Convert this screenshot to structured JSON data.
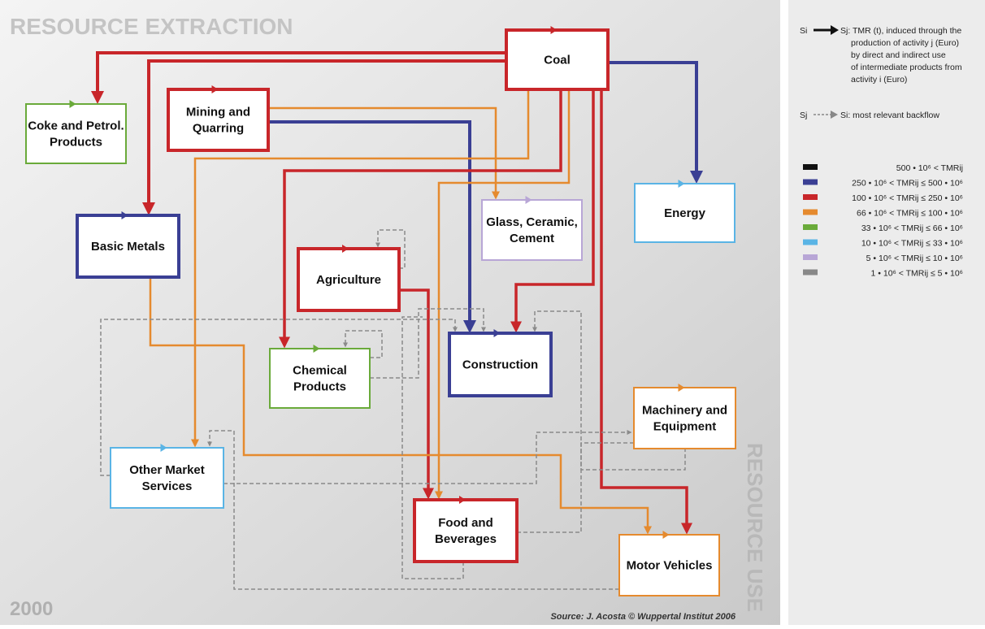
{
  "header": {
    "title": "RESOURCE EXTRACTION",
    "year": "2000",
    "side_label": "RESOURCE USE",
    "source": "Source: J. Acosta © Wuppertal Institut 2006"
  },
  "nodes": [
    {
      "lines": [
        "Coal"
      ],
      "color": "#c8262a"
    },
    {
      "lines": [
        "Coke and Petrol.",
        "Products"
      ],
      "color": "#6aaa3a"
    },
    {
      "lines": [
        "Mining and",
        "Quarring"
      ],
      "color": "#c8262a"
    },
    {
      "lines": [
        "Basic Metals"
      ],
      "color": "#3a3f94"
    },
    {
      "lines": [
        "Glass, Ceramic,",
        "Cement"
      ],
      "color": "#b8a6d6"
    },
    {
      "lines": [
        "Energy"
      ],
      "color": "#5ab4e5"
    },
    {
      "lines": [
        "Agriculture"
      ],
      "color": "#c8262a"
    },
    {
      "lines": [
        "Chemical",
        "Products"
      ],
      "color": "#6aaa3a"
    },
    {
      "lines": [
        "Construction"
      ],
      "color": "#3a3f94"
    },
    {
      "lines": [
        "Machinery and",
        "Equipment"
      ],
      "color": "#e58a2e"
    },
    {
      "lines": [
        "Other Market",
        "Services"
      ],
      "color": "#5ab4e5"
    },
    {
      "lines": [
        "Food and",
        "Beverages"
      ],
      "color": "#c8262a"
    },
    {
      "lines": [
        "Motor Vehicles"
      ],
      "color": "#e58a2e"
    }
  ],
  "legend": {
    "flow_from": "Si",
    "flow_text": [
      "Sj: TMR (t), induced through the",
      "production of activity j (Euro)",
      "by direct and indirect use",
      "of intermediate products from",
      "activity i (Euro)"
    ],
    "backflow_from": "Sj",
    "backflow_text": "Si: most relevant backflow",
    "items": [
      {
        "label": "500 • 10⁶ <  TMRij",
        "color": "#111111"
      },
      {
        "label": "250 • 10⁶ <  TMRij  ≤  500 • 10⁶",
        "color": "#3a3f94"
      },
      {
        "label": "100 • 10⁶ <  TMRij  ≤  250 • 10⁶",
        "color": "#c8262a"
      },
      {
        "label": "66 • 10⁶ <  TMRij  ≤  100 • 10⁶",
        "color": "#e58a2e"
      },
      {
        "label": "33 • 10⁶ <  TMRij  ≤   66 • 10⁶",
        "color": "#6aaa3a"
      },
      {
        "label": "10 • 10⁶ <  TMRij  ≤   33 • 10⁶",
        "color": "#5ab4e5"
      },
      {
        "label": "5 • 10⁶ <  TMRij  ≤   10 • 10⁶",
        "color": "#b8a6d6"
      },
      {
        "label": "1 • 10⁶ <  TMRij  ≤    5 • 10⁶",
        "color": "#888888"
      }
    ]
  }
}
